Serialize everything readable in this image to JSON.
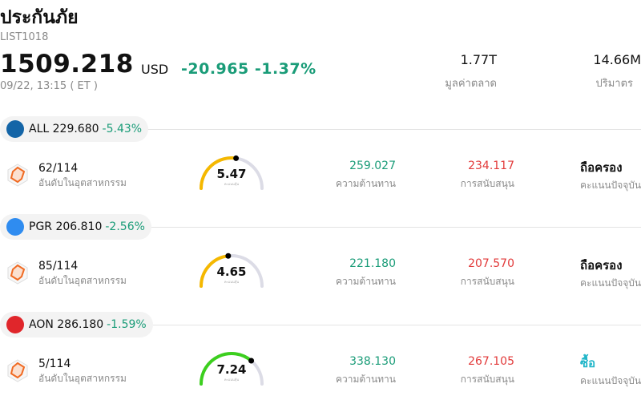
{
  "header": {
    "title": "ประกันภัย",
    "code": "LIST1018",
    "price": "1509.218",
    "currency": "USD",
    "change": "-20.965",
    "change_pct": "-1.37%",
    "time": "09/22, 13:15  ( ET )",
    "market_cap_value": "1.77T",
    "market_cap_label": "มูลค่าตลาด",
    "volume_value": "14.66M",
    "volume_label": "ปริมาตร"
  },
  "labels": {
    "rank_sub": "อันดับในอุตสาหกรรม",
    "resistance": "ความต้านทาน",
    "support": "การสนับสนุน",
    "rating_sub": "คะแนนปัจจุบัน",
    "gauge_sub": "คะแนนหุ้น"
  },
  "colors": {
    "accent_green": "#1a9c78",
    "accent_red": "#e23a3a",
    "buy_teal": "#1fb5c8"
  },
  "stocks": [
    {
      "ticker_line": "ALL 229.680",
      "pct": "-5.43%",
      "logo": "allstate-logo-icon",
      "logo_color": "#1465a7",
      "rank": "62/114",
      "score": "5.47",
      "score_fraction": 0.547,
      "gauge_color": "#f5b800",
      "resistance": "259.027",
      "support": "234.117",
      "rating": "ถือครอง"
    },
    {
      "ticker_line": "PGR 206.810",
      "pct": "-2.56%",
      "logo": "progressive-logo-icon",
      "logo_color": "#2f8cf0",
      "rank": "85/114",
      "score": "4.65",
      "score_fraction": 0.465,
      "gauge_color": "#f5b800",
      "resistance": "221.180",
      "support": "207.570",
      "rating": "ถือครอง"
    },
    {
      "ticker_line": "AON 286.180",
      "pct": "-1.59%",
      "logo": "aon-logo-icon",
      "logo_color": "#e0262b",
      "rank": "5/114",
      "score": "7.24",
      "score_fraction": 0.724,
      "gauge_color": "#3ccf1e",
      "resistance": "338.130",
      "support": "267.105",
      "rating": "ซื้อ"
    }
  ]
}
